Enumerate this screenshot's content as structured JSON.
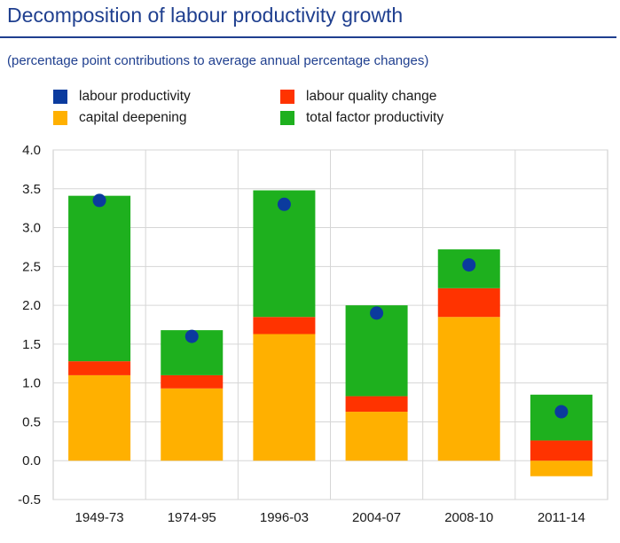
{
  "title": "Decomposition of labour productivity growth",
  "subtitle": "(percentage point contributions to average annual percentage changes)",
  "legend": [
    {
      "label": "labour productivity",
      "color": "#0b3b9e"
    },
    {
      "label": "labour quality change",
      "color": "#ff3300"
    },
    {
      "label": "capital deepening",
      "color": "#ffb000"
    },
    {
      "label": "total factor productivity",
      "color": "#1eb01e"
    }
  ],
  "chart_data": {
    "type": "bar",
    "stacked": true,
    "title": "Decomposition of labour productivity growth",
    "subtitle": "(percentage point contributions to average annual percentage changes)",
    "categories": [
      "1949-73",
      "1974-95",
      "1996-03",
      "2004-07",
      "2008-10",
      "2011-14"
    ],
    "ylim": [
      -0.5,
      4.0
    ],
    "yticks": [
      "4.0",
      "3.5",
      "3.0",
      "2.5",
      "2.0",
      "1.5",
      "1.0",
      "0.5",
      "0.0",
      "-0.5"
    ],
    "grid": true,
    "series": [
      {
        "name": "capital deepening",
        "color": "#ffb000",
        "values": [
          1.1,
          0.93,
          1.63,
          0.63,
          1.85,
          -0.2
        ]
      },
      {
        "name": "labour quality change",
        "color": "#ff3300",
        "values": [
          0.18,
          0.17,
          0.22,
          0.2,
          0.37,
          0.26
        ]
      },
      {
        "name": "total factor productivity",
        "color": "#1eb01e",
        "values": [
          2.13,
          0.58,
          1.63,
          1.17,
          0.5,
          0.59
        ]
      },
      {
        "name": "labour productivity",
        "color": "#0b3b9e",
        "kind": "point",
        "values": [
          3.35,
          1.6,
          3.3,
          1.9,
          2.52,
          0.63
        ]
      }
    ]
  }
}
